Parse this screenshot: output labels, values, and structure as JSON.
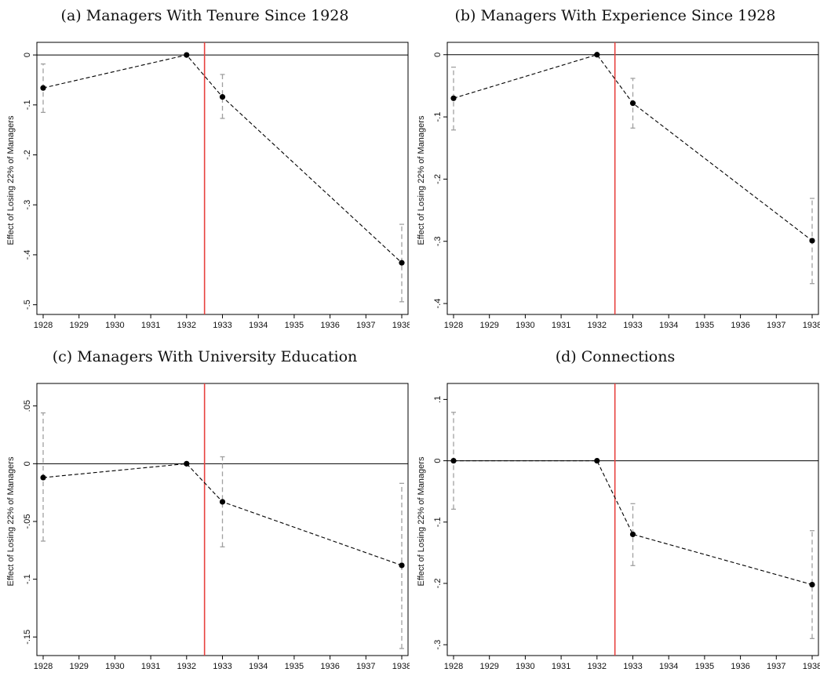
{
  "chart_data": [
    {
      "type": "line",
      "title": "(a) Managers With Tenure Since 1928",
      "ylabel": "Effect of Losing 22% of Managers",
      "xlabel": "",
      "x_ticks": [
        "1928",
        "1929",
        "1930",
        "1931",
        "1932",
        "1933",
        "1934",
        "1935",
        "1936",
        "1937",
        "1938"
      ],
      "y_ticks": [
        {
          "value": 0,
          "label": "0"
        },
        {
          "value": -0.1,
          "label": "-.1"
        },
        {
          "value": -0.2,
          "label": "-.2"
        },
        {
          "value": -0.3,
          "label": "-.3"
        },
        {
          "value": -0.4,
          "label": "-.4"
        },
        {
          "value": -0.5,
          "label": "-.5"
        }
      ],
      "xlim": [
        1928,
        1938
      ],
      "ylim": [
        -0.51,
        0.008
      ],
      "reference_line_x": 1932.5,
      "zero_line": true,
      "grid": false,
      "points": [
        {
          "x": 1928,
          "y": -0.066,
          "ci": [
            -0.115,
            -0.018
          ]
        },
        {
          "x": 1932,
          "y": 0.0
        },
        {
          "x": 1933,
          "y": -0.084,
          "ci": [
            -0.127,
            -0.039
          ]
        },
        {
          "x": 1938,
          "y": -0.416,
          "ci": [
            -0.494,
            -0.339
          ]
        }
      ]
    },
    {
      "type": "line",
      "title": "(b) Managers With Experience Since 1928",
      "ylabel": "Effect of Losing 22% of Managers",
      "xlabel": "",
      "x_ticks": [
        "1928",
        "1929",
        "1930",
        "1931",
        "1932",
        "1933",
        "1934",
        "1935",
        "1936",
        "1937",
        "1938"
      ],
      "y_ticks": [
        {
          "value": 0,
          "label": "0"
        },
        {
          "value": -0.1,
          "label": "-.1"
        },
        {
          "value": -0.2,
          "label": "-.2"
        },
        {
          "value": -0.3,
          "label": "-.3"
        },
        {
          "value": -0.4,
          "label": "-.4"
        }
      ],
      "xlim": [
        1928,
        1938
      ],
      "ylim": [
        -0.41,
        0.006
      ],
      "reference_line_x": 1932.5,
      "zero_line": true,
      "grid": false,
      "points": [
        {
          "x": 1928,
          "y": -0.07,
          "ci": [
            -0.121,
            -0.02
          ]
        },
        {
          "x": 1932,
          "y": 0.0
        },
        {
          "x": 1933,
          "y": -0.078,
          "ci": [
            -0.118,
            -0.038
          ]
        },
        {
          "x": 1938,
          "y": -0.299,
          "ci": [
            -0.368,
            -0.231
          ]
        }
      ]
    },
    {
      "type": "line",
      "title": "(c) Managers With University Education",
      "ylabel": "Effect of Losing 22% of Managers",
      "xlabel": "",
      "x_ticks": [
        "1928",
        "1929",
        "1930",
        "1931",
        "1932",
        "1933",
        "1934",
        "1935",
        "1936",
        "1937",
        "1938"
      ],
      "y_ticks": [
        {
          "value": 0.05,
          "label": ".05"
        },
        {
          "value": 0,
          "label": "0"
        },
        {
          "value": -0.05,
          "label": "-.05"
        },
        {
          "value": -0.1,
          "label": "-.1"
        },
        {
          "value": -0.15,
          "label": "-.15"
        }
      ],
      "xlim": [
        1928,
        1938
      ],
      "ylim": [
        -0.162,
        0.062
      ],
      "reference_line_x": 1932.5,
      "zero_line": true,
      "grid": false,
      "points": [
        {
          "x": 1928,
          "y": -0.012,
          "ci": [
            -0.067,
            0.044
          ]
        },
        {
          "x": 1932,
          "y": 0.0
        },
        {
          "x": 1933,
          "y": -0.033,
          "ci": [
            -0.072,
            0.006
          ]
        },
        {
          "x": 1938,
          "y": -0.088,
          "ci": [
            -0.16,
            -0.017
          ]
        }
      ]
    },
    {
      "type": "line",
      "title": "(d) Connections",
      "ylabel": "Effect of Losing 22% of Managers",
      "xlabel": "",
      "x_ticks": [
        "1928",
        "1929",
        "1930",
        "1931",
        "1932",
        "1933",
        "1934",
        "1935",
        "1936",
        "1937",
        "1938"
      ],
      "y_ticks": [
        {
          "value": 0.1,
          "label": ".1"
        },
        {
          "value": 0,
          "label": "0"
        },
        {
          "value": -0.1,
          "label": "-.1"
        },
        {
          "value": -0.2,
          "label": "-.2"
        },
        {
          "value": -0.3,
          "label": "-.3"
        }
      ],
      "xlim": [
        1928,
        1938
      ],
      "ylim": [
        -0.31,
        0.112
      ],
      "reference_line_x": 1932.5,
      "zero_line": true,
      "grid": false,
      "points": [
        {
          "x": 1928,
          "y": 0.0,
          "ci": [
            -0.079,
            0.079
          ]
        },
        {
          "x": 1932,
          "y": 0.0
        },
        {
          "x": 1933,
          "y": -0.12,
          "ci": [
            -0.171,
            -0.07
          ]
        },
        {
          "x": 1938,
          "y": -0.202,
          "ci": [
            -0.29,
            -0.114
          ]
        }
      ]
    }
  ],
  "colors": {
    "reference_line": "#e8413e",
    "ci_bar": "#a0a0a0",
    "series": "#000000",
    "axis": "#000000"
  }
}
